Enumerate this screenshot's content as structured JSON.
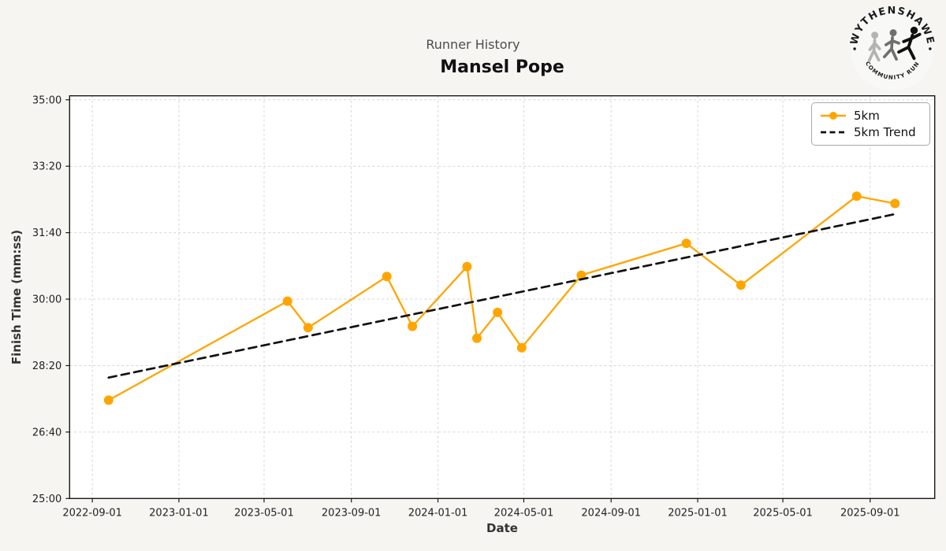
{
  "header": {
    "subtitle": "Runner History",
    "title": "Mansel Pope"
  },
  "logo": {
    "top_text": "WYTHENSHAWE",
    "bottom_text": "COMMUNITY RUN"
  },
  "legend": {
    "item_5km": "5km",
    "item_trend": "5km Trend"
  },
  "chart_data": {
    "type": "line",
    "title": "Runner History",
    "runner": "Mansel Pope",
    "xlabel": "Date",
    "ylabel": "Finish Time (mm:ss)",
    "grid": true,
    "legend_position": "upper right",
    "xlim": [
      "2022-07-31",
      "2025-12-01"
    ],
    "ylim": [
      "25:00",
      "35:06"
    ],
    "x_ticks": [
      "2022-09-01",
      "2023-01-01",
      "2023-05-01",
      "2023-09-01",
      "2024-01-01",
      "2024-05-01",
      "2024-09-01",
      "2025-01-01",
      "2025-05-01",
      "2025-09-01"
    ],
    "y_ticks": [
      "25:00",
      "26:40",
      "28:20",
      "30:00",
      "31:40",
      "33:20",
      "35:00"
    ],
    "series": [
      {
        "name": "5km",
        "style": "solid-marker",
        "color": "#FFA500",
        "points": [
          [
            "2022-09-24",
            "27:28"
          ],
          [
            "2023-06-03",
            "29:57"
          ],
          [
            "2023-07-02",
            "29:17"
          ],
          [
            "2023-10-21",
            "30:34"
          ],
          [
            "2023-11-26",
            "29:19"
          ],
          [
            "2024-02-11",
            "30:49"
          ],
          [
            "2024-02-25",
            "29:01"
          ],
          [
            "2024-03-25",
            "29:40"
          ],
          [
            "2024-04-28",
            "28:47"
          ],
          [
            "2024-07-21",
            "30:36"
          ],
          [
            "2024-12-16",
            "31:24"
          ],
          [
            "2025-03-03",
            "30:21"
          ],
          [
            "2025-08-13",
            "32:35"
          ],
          [
            "2025-10-06",
            "32:24"
          ]
        ]
      },
      {
        "name": "5km Trend",
        "style": "dashed",
        "color": "#111111",
        "points": [
          [
            "2022-09-24",
            "28:02"
          ],
          [
            "2025-10-06",
            "32:08"
          ]
        ]
      }
    ]
  }
}
